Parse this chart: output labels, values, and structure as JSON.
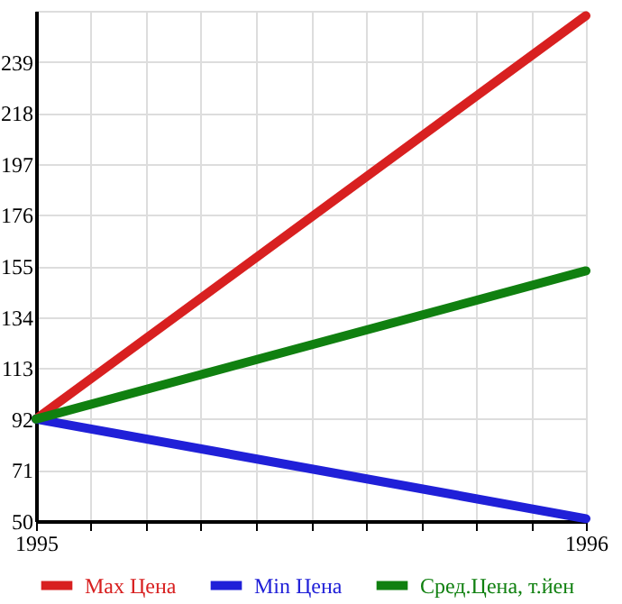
{
  "chart_data": {
    "type": "line",
    "x": [
      1995,
      1996
    ],
    "series": [
      {
        "name": "Max Цена",
        "color": "#d82020",
        "values": [
          92,
          258
        ]
      },
      {
        "name": "Min Цена",
        "color": "#2020d8",
        "values": [
          92,
          51
        ]
      },
      {
        "name": "Сред.Цена, т.йен",
        "color": "#108010",
        "values": [
          92,
          153
        ]
      }
    ],
    "xlim": [
      1995,
      1996
    ],
    "xticks": [
      {
        "value": 1995,
        "label": "1995"
      },
      {
        "value": 1995.1,
        "label": null
      },
      {
        "value": 1995.2,
        "label": null
      },
      {
        "value": 1995.3,
        "label": null
      },
      {
        "value": 1995.4,
        "label": null
      },
      {
        "value": 1995.5,
        "label": null
      },
      {
        "value": 1995.6,
        "label": null
      },
      {
        "value": 1995.7,
        "label": null
      },
      {
        "value": 1995.8,
        "label": null
      },
      {
        "value": 1995.9,
        "label": null
      },
      {
        "value": 1996,
        "label": "1996"
      }
    ],
    "ylim": [
      50,
      260
    ],
    "yticks": [
      50,
      71,
      92,
      113,
      134,
      155,
      176,
      197,
      218,
      239,
      {
        "value": 260,
        "label": null
      }
    ],
    "grid": true,
    "legend": "bottom",
    "marker": "none",
    "line_style": "solid"
  }
}
